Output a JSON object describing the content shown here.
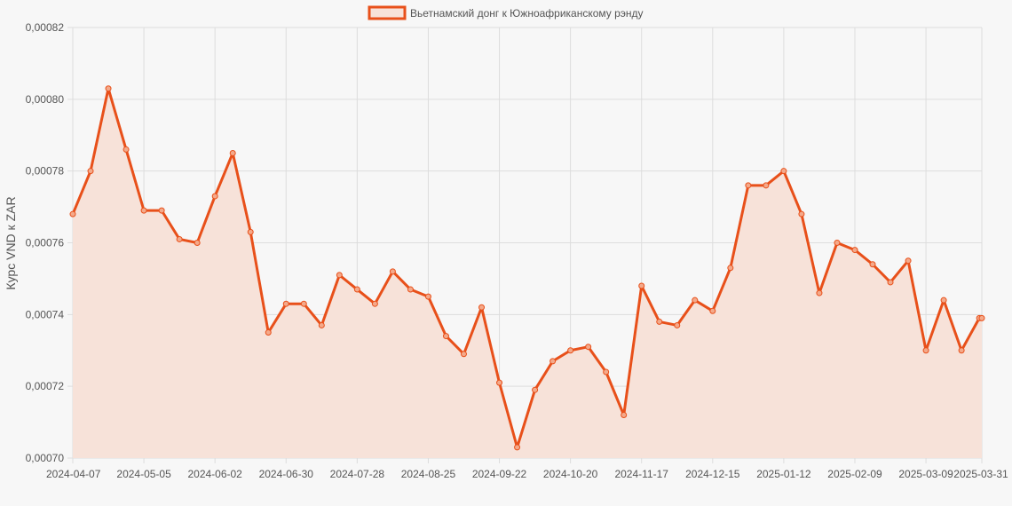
{
  "chart_data": {
    "type": "line",
    "legend": {
      "label": "Вьетнамский донг к Южноафриканскому рэнду",
      "position": "top"
    },
    "ylabel": "Курс VND к ZAR",
    "xlabel": "",
    "ylim": [
      0.0007,
      0.00082
    ],
    "y_ticks": [
      "0,00070",
      "0,00072",
      "0,00074",
      "0,00076",
      "0,00078",
      "0,00080",
      "0,00082"
    ],
    "x_tick_labels": [
      "2024-04-07",
      "2024-05-05",
      "2024-06-02",
      "2024-06-30",
      "2024-07-28",
      "2024-08-25",
      "2024-09-22",
      "2024-10-20",
      "2024-11-17",
      "2024-12-15",
      "2025-01-12",
      "2025-02-09",
      "2025-03-09",
      "2025-03-31"
    ],
    "colors": {
      "line": "#e8501a",
      "fill": "#f7e2d9",
      "grid": "#dddddd",
      "background": "#f7f7f7"
    },
    "grid": true,
    "series": [
      {
        "name": "Вьетнамский донг к Южноафриканскому рэнду",
        "x": [
          "2024-04-07",
          "2024-04-14",
          "2024-04-21",
          "2024-04-28",
          "2024-05-05",
          "2024-05-12",
          "2024-05-19",
          "2024-05-26",
          "2024-06-02",
          "2024-06-09",
          "2024-06-16",
          "2024-06-23",
          "2024-06-30",
          "2024-07-07",
          "2024-07-14",
          "2024-07-21",
          "2024-07-28",
          "2024-08-04",
          "2024-08-11",
          "2024-08-18",
          "2024-08-25",
          "2024-09-01",
          "2024-09-08",
          "2024-09-15",
          "2024-09-22",
          "2024-09-29",
          "2024-10-06",
          "2024-10-13",
          "2024-10-20",
          "2024-10-27",
          "2024-11-03",
          "2024-11-10",
          "2024-11-17",
          "2024-11-24",
          "2024-12-01",
          "2024-12-08",
          "2024-12-15",
          "2024-12-22",
          "2024-12-29",
          "2025-01-05",
          "2025-01-12",
          "2025-01-19",
          "2025-01-26",
          "2025-02-02",
          "2025-02-09",
          "2025-02-16",
          "2025-02-23",
          "2025-03-02",
          "2025-03-09",
          "2025-03-16",
          "2025-03-23",
          "2025-03-30",
          "2025-03-31"
        ],
        "values": [
          0.000768,
          0.00078,
          0.000803,
          0.000786,
          0.000769,
          0.000769,
          0.000761,
          0.00076,
          0.000773,
          0.000785,
          0.000763,
          0.000735,
          0.000743,
          0.000743,
          0.000737,
          0.000751,
          0.000747,
          0.000743,
          0.000752,
          0.000747,
          0.000745,
          0.000734,
          0.000729,
          0.000742,
          0.000721,
          0.000703,
          0.000719,
          0.000727,
          0.00073,
          0.000731,
          0.000724,
          0.000712,
          0.000748,
          0.000738,
          0.000737,
          0.000744,
          0.000741,
          0.000753,
          0.000776,
          0.000776,
          0.00078,
          0.000768,
          0.000746,
          0.00076,
          0.000758,
          0.000754,
          0.000749,
          0.000755,
          0.00073,
          0.000744,
          0.00073,
          0.000739,
          0.000739
        ]
      }
    ]
  }
}
